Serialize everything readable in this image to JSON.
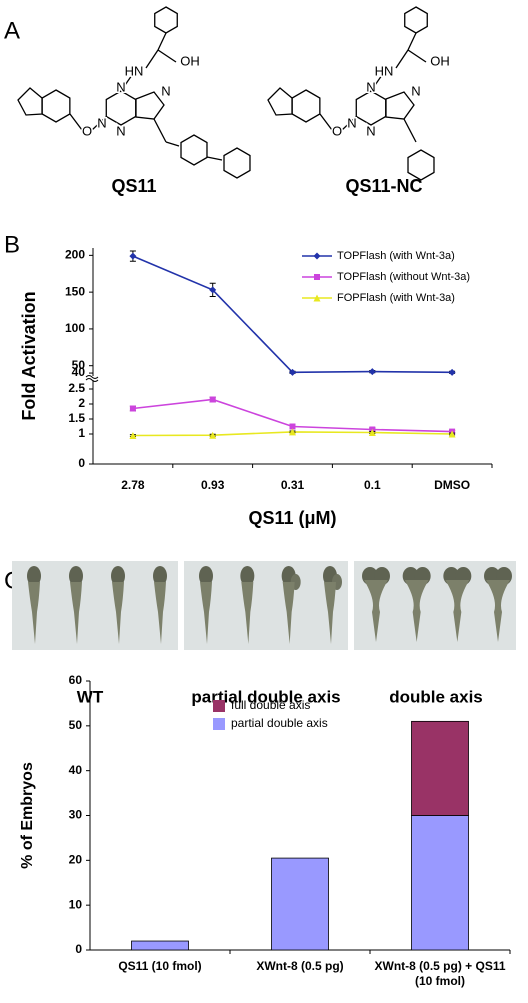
{
  "panel_labels": [
    "A",
    "B",
    "C"
  ],
  "compounds": [
    {
      "name": "QS11",
      "atoms": [
        "HN",
        "OH",
        "N",
        "N",
        "N",
        "N",
        "O"
      ]
    },
    {
      "name": "QS11-NC",
      "atoms": [
        "HN",
        "OH",
        "N",
        "N",
        "N",
        "N",
        "O"
      ]
    }
  ],
  "embryo_labels": [
    "WT",
    "partial double axis",
    "double axis"
  ],
  "chart_data": [
    {
      "type": "line",
      "categories": [
        "2.78",
        "0.93",
        "0.31",
        "0.1",
        "DMSO"
      ],
      "x_label": "QS11 (μM)",
      "y_label": "Fold Activation",
      "ylim": [
        0,
        210
      ],
      "axis_break": [
        2.8,
        36
      ],
      "yticks": [
        0,
        1,
        1.5,
        2,
        2.5,
        40,
        50,
        100,
        150,
        200
      ],
      "legend": "upper right",
      "series": [
        {
          "name": "TOPFlash (with Wnt-3a)",
          "color": "#2233aa",
          "marker": "diamond",
          "values": [
            199,
            153,
            41,
            42,
            41
          ],
          "errors": [
            7,
            9,
            1.5,
            1.5,
            1.5
          ]
        },
        {
          "name": "TOPFlash (without Wnt-3a)",
          "color": "#cc44dd",
          "marker": "square",
          "values": [
            1.85,
            2.15,
            1.25,
            1.15,
            1.08
          ],
          "errors": [
            0.08,
            0.08,
            0.05,
            0.05,
            0.04
          ]
        },
        {
          "name": "FOPFlash (with Wnt-3a)",
          "color": "#e8e820",
          "marker": "triangle",
          "values": [
            0.95,
            0.96,
            1.07,
            1.05,
            1.0
          ],
          "errors": [
            0.03,
            0.03,
            0.03,
            0.03,
            0.03
          ]
        }
      ]
    },
    {
      "type": "bar",
      "stacked": true,
      "y_label": "% of Embryos",
      "categories": [
        "QS11 (10 fmol)",
        "XWnt-8 (0.5 pg)",
        "XWnt-8 (0.5 pg) + QS11 (10 fmol)"
      ],
      "ylim": [
        0,
        60
      ],
      "yticks": [
        0,
        10,
        20,
        30,
        40,
        50,
        60
      ],
      "legend": "upper left",
      "series": [
        {
          "name": "partial double axis",
          "color": "#9999ff",
          "values": [
            2,
            20.5,
            30
          ]
        },
        {
          "name": "full double axis",
          "color": "#993366",
          "values": [
            0,
            0,
            21
          ]
        }
      ]
    }
  ]
}
